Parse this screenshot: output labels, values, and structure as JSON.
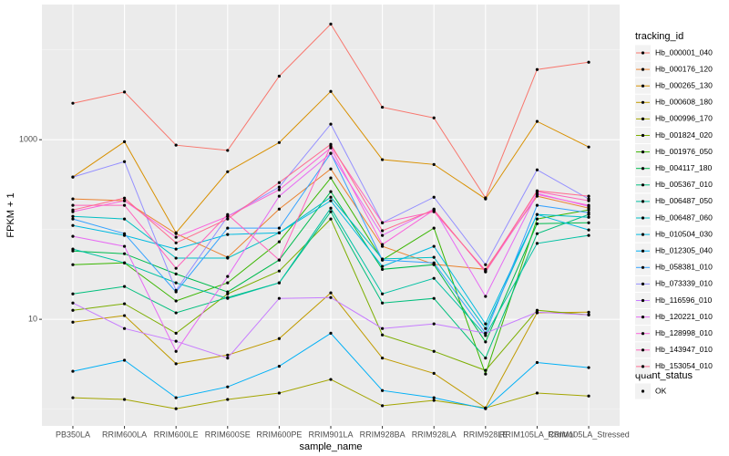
{
  "chart_data": {
    "type": "line",
    "x_label": "sample_name",
    "y_label": "FPKM + 1",
    "ylog": true,
    "grid": true,
    "ylim": [
      0.65,
      32000
    ],
    "yticks": [
      10,
      1000
    ],
    "legend_title": "tracking_id",
    "legend_position": "right",
    "point_color": "#000000",
    "quant_status_title": "quant_status",
    "quant_status_values": [
      "OK"
    ],
    "categories": [
      "PB350LA",
      "RRIM600LA",
      "RRIM600LE",
      "RRIM600SE",
      "RRIM600PE",
      "RRIM901LA",
      "RRIM928BA",
      "RRIM928LA",
      "RRIM928LE",
      "RRIM105LA_Control",
      "RRIM105LA_Stressed"
    ],
    "series": [
      {
        "name": "Hb_000001_040",
        "color": "#F8766D",
        "values": [
          2550,
          3400,
          870,
          760,
          5100,
          19400,
          2300,
          1750,
          225,
          6050,
          7300
        ]
      },
      {
        "name": "Hb_000176_120",
        "color": "#EA8331",
        "values": [
          219,
          209,
          90,
          49,
          169,
          473,
          65,
          41,
          36,
          235,
          173
        ]
      },
      {
        "name": "Hb_000265_130",
        "color": "#D89000",
        "values": [
          384,
          950,
          92,
          440,
          930,
          3450,
          600,
          530,
          219,
          1600,
          830
        ]
      },
      {
        "name": "Hb_000608_180",
        "color": "#C09B00",
        "values": [
          9.3,
          11,
          3.2,
          4.0,
          6.1,
          19.7,
          3.7,
          2.5,
          1.03,
          11.8,
          12
        ]
      },
      {
        "name": "Hb_000996_170",
        "color": "#A3A500",
        "values": [
          1.34,
          1.28,
          1.01,
          1.28,
          1.51,
          2.14,
          1.09,
          1.25,
          1.03,
          1.51,
          1.4
        ]
      },
      {
        "name": "Hb_001824_020",
        "color": "#7CAE00",
        "values": [
          12.6,
          14.9,
          7.0,
          19.2,
          34.5,
          131,
          6.7,
          4.4,
          2.7,
          12.6,
          11.2
        ]
      },
      {
        "name": "Hb_001976_050",
        "color": "#39B600",
        "values": [
          40.6,
          42.5,
          16.0,
          25.5,
          73,
          375,
          45.7,
          103.6,
          2.46,
          131,
          165
        ]
      },
      {
        "name": "Hb_004117_180",
        "color": "#00BB4E",
        "values": [
          57.7,
          53.8,
          32,
          20.2,
          45.7,
          264,
          36,
          40.6,
          5.6,
          116,
          119
        ]
      },
      {
        "name": "Hb_005367_010",
        "color": "#00BF7D",
        "values": [
          19.2,
          23.2,
          11.8,
          17.5,
          25.5,
          158,
          15.2,
          17.1,
          3.7,
          90,
          147
        ]
      },
      {
        "name": "Hb_006487_050",
        "color": "#00C1A3",
        "values": [
          60.5,
          42.5,
          25.5,
          17.1,
          25.5,
          173,
          19.2,
          28.6,
          6.6,
          70,
          86
        ]
      },
      {
        "name": "Hb_006487_060",
        "color": "#00BFC4",
        "values": [
          140,
          131,
          48,
          48,
          92,
          229,
          47,
          49,
          7.9,
          147,
          137
        ]
      },
      {
        "name": "Hb_010504_030",
        "color": "#00BAE0",
        "values": [
          111,
          86,
          60.5,
          88,
          92,
          209,
          38.8,
          65,
          8.9,
          147,
          99
        ]
      },
      {
        "name": "Hb_012305_040",
        "color": "#00B0F6",
        "values": [
          2.64,
          3.5,
          1.34,
          1.77,
          3.0,
          7.0,
          1.61,
          1.34,
          1.01,
          3.3,
          2.9
        ]
      },
      {
        "name": "Hb_058381_010",
        "color": "#35A2FF",
        "values": [
          131,
          90,
          20.2,
          103.6,
          103.6,
          705,
          45.7,
          42.5,
          7.0,
          186,
          154
        ]
      },
      {
        "name": "Hb_073339_010",
        "color": "#9590FF",
        "values": [
          384,
          570,
          21,
          140,
          297,
          1490,
          119,
          229,
          40.6,
          462,
          219
        ]
      },
      {
        "name": "Hb_116596_010",
        "color": "#C77CFF",
        "values": [
          15.2,
          7.9,
          5.7,
          3.7,
          17.1,
          17.5,
          7.9,
          8.9,
          7.0,
          12,
          11.2
        ]
      },
      {
        "name": "Hb_120221_010",
        "color": "#E76BF3",
        "values": [
          84,
          65,
          4.4,
          30,
          235,
          705,
          86,
          169,
          18.0,
          252,
          181
        ]
      },
      {
        "name": "Hb_128998_010",
        "color": "#FA62DB",
        "values": [
          158,
          209,
          82,
          140,
          277,
          811,
          68,
          165,
          33.7,
          245,
          186
        ]
      },
      {
        "name": "Hb_143947_010",
        "color": "#FF62BC",
        "values": [
          186,
          186,
          37,
          147,
          45.7,
          850,
          119,
          158,
          35,
          264,
          209
        ]
      },
      {
        "name": "Hb_153054_010",
        "color": "#FF6C91",
        "values": [
          165,
          224,
          71,
          131,
          333,
          890,
          97,
          165,
          34,
          270,
          235
        ]
      }
    ]
  }
}
